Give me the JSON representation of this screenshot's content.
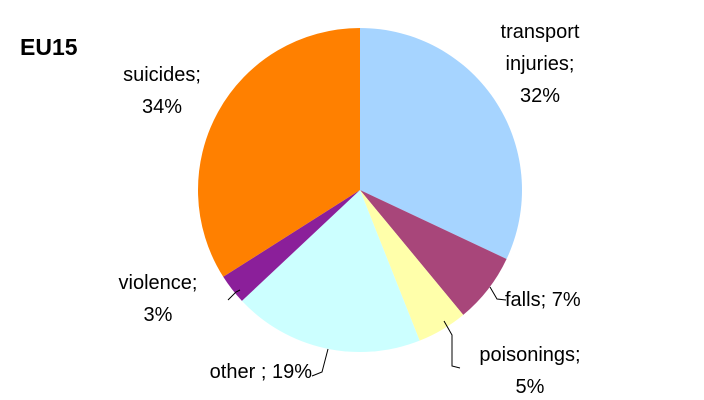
{
  "chart_data": {
    "type": "pie",
    "title": "EU15",
    "categories": [
      "transport injuries;",
      "falls;",
      "poisonings;",
      "other ;",
      "violence;",
      "suicides;"
    ],
    "values": [
      32,
      7,
      5,
      19,
      3,
      34
    ],
    "value_labels": [
      "32%",
      "7%",
      "5%",
      "19%",
      "3%",
      "34%"
    ],
    "colors": [
      "#a6d4ff",
      "#a8467a",
      "#ffffaa",
      "#ccffff",
      "#8b1f9a",
      "#ff8000"
    ]
  }
}
